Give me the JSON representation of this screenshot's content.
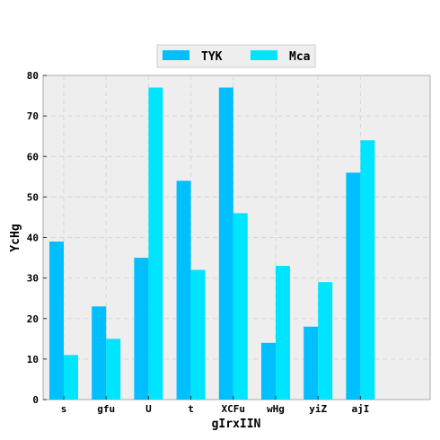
{
  "chart_data": {
    "type": "bar",
    "categories": [
      "s",
      "gfu",
      "U",
      "t",
      "XCFu",
      "wHg",
      "yiZ",
      "ajI"
    ],
    "series": [
      {
        "name": "TYK",
        "values": [
          39,
          23,
          35,
          54,
          77,
          14,
          18,
          56
        ],
        "color": "#00bfff"
      },
      {
        "name": "Mca",
        "values": [
          11,
          15,
          77,
          32,
          46,
          33,
          29,
          64
        ],
        "color": "#00e5ff"
      }
    ],
    "xlabel": "gIrxIIN",
    "ylabel": "YcHg",
    "ylim": [
      0,
      80
    ],
    "yticks": [
      0,
      10,
      20,
      30,
      40,
      50,
      60,
      70,
      80
    ],
    "grid": true,
    "legend_position": "top-center",
    "background_color": "#eeeeee"
  }
}
